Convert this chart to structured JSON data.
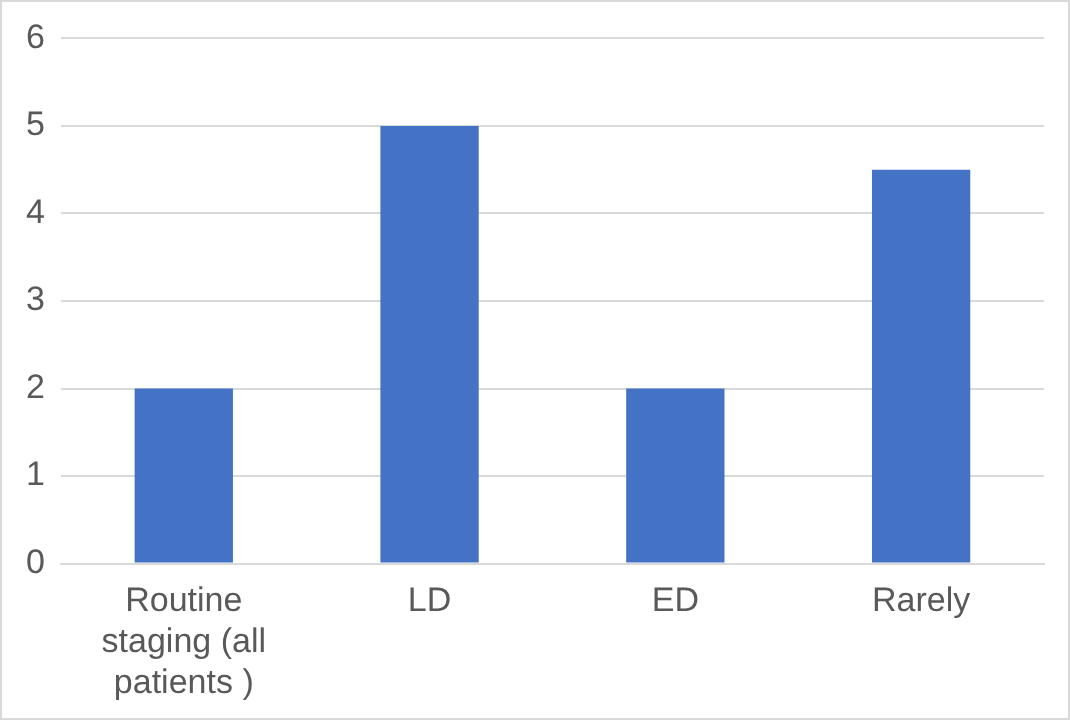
{
  "chart_data": {
    "type": "bar",
    "categories": [
      "Routine staging (all patients )",
      "LD",
      "ED",
      "Rarely"
    ],
    "values": [
      2,
      5,
      2,
      4.5
    ],
    "color": "#4472c4",
    "ylim": [
      0,
      6
    ],
    "yticks": [
      0,
      1,
      2,
      3,
      4,
      5,
      6
    ],
    "grid": "y",
    "legend": false
  }
}
